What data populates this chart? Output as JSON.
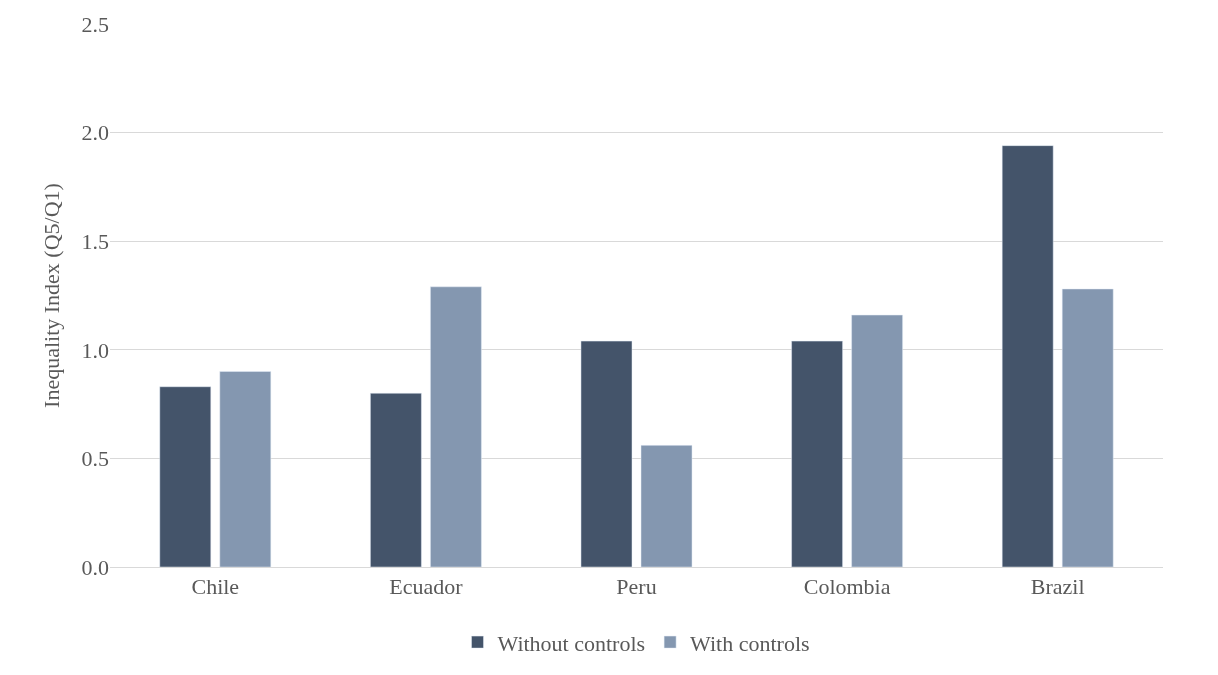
{
  "chart_data": {
    "type": "bar",
    "ylabel": "Inequality Index (Q5/Q1)",
    "categories": [
      "Chile",
      "Ecuador",
      "Peru",
      "Colombia",
      "Brazil"
    ],
    "series": [
      {
        "name": "Without controls",
        "color": "#44546a",
        "values": [
          0.83,
          0.8,
          1.04,
          1.04,
          1.94
        ]
      },
      {
        "name": "With controls",
        "color": "#8497b0",
        "values": [
          0.9,
          1.29,
          0.56,
          1.16,
          1.28
        ]
      }
    ],
    "ylim": [
      0,
      2.5
    ],
    "yticks": [
      {
        "value": 0,
        "label": "0.0"
      },
      {
        "value": 0.5,
        "label": "0.5"
      },
      {
        "value": 1,
        "label": "1.0"
      },
      {
        "value": 1.5,
        "label": "1.5"
      },
      {
        "value": 2,
        "label": "2.0"
      },
      {
        "value": 2.5,
        "label": "2.5"
      }
    ],
    "grid": "y",
    "legend": "bottom"
  }
}
